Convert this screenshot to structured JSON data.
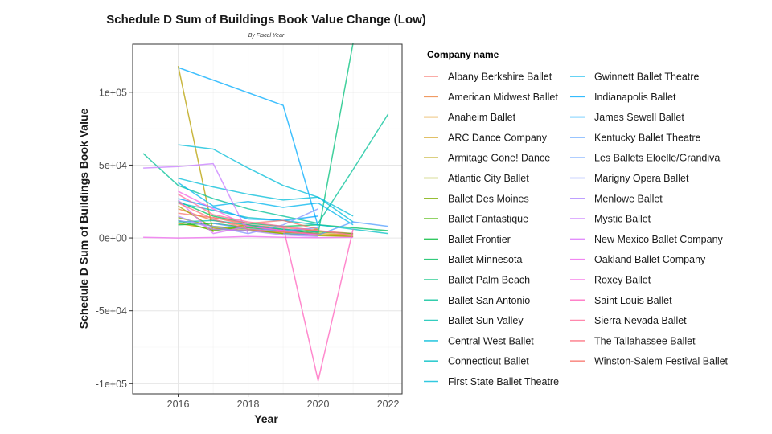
{
  "chart_data": {
    "type": "line",
    "title": "Schedule D Sum of Buildings Book Value Change (Low)",
    "subtitle": "By Fiscal Year",
    "xlabel": "Year",
    "ylabel": "Schedule D Sum of Buildings Book Value",
    "xlim": [
      2014.7,
      2022.4
    ],
    "ylim": [
      -107000,
      133000
    ],
    "x_ticks": [
      2016,
      2018,
      2020,
      2022
    ],
    "x_tick_labels": [
      "2016",
      "2018",
      "2020",
      "2022"
    ],
    "y_ticks": [
      -100000,
      -50000,
      0,
      50000,
      100000
    ],
    "y_tick_labels": [
      "-1e+05",
      "-5e+04",
      "0e+00",
      "5e+04",
      "1e+05"
    ],
    "grid": true,
    "legend_title": "Company name",
    "legend_position": "right",
    "series": [
      {
        "name": "Albany Berkshire Ballet",
        "color": "#F8766D",
        "x": [
          2016,
          2017,
          2018,
          2019,
          2020,
          2021
        ],
        "y": [
          17000,
          14000,
          9000,
          7000,
          5000,
          3000
        ]
      },
      {
        "name": "American Midwest Ballet",
        "color": "#EC823C",
        "x": [
          2016,
          2017,
          2018,
          2019,
          2020
        ],
        "y": [
          20000,
          12000,
          8000,
          5000,
          3000
        ]
      },
      {
        "name": "Anaheim Ballet",
        "color": "#DE8C00",
        "x": [
          2017,
          2018,
          2019,
          2020,
          2021
        ],
        "y": [
          6000,
          5000,
          4000,
          3000,
          2000
        ]
      },
      {
        "name": "ARC Dance Company",
        "color": "#CD9600",
        "x": [
          2016,
          2017,
          2018,
          2019,
          2020,
          2021
        ],
        "y": [
          10000,
          6000,
          9000,
          4000,
          2000,
          1000
        ]
      },
      {
        "name": "Armitage Gone! Dance",
        "color": "#B79F00",
        "x": [
          2016,
          2017
        ],
        "y": [
          118000,
          4000
        ]
      },
      {
        "name": "Atlantic City Ballet",
        "color": "#9DA700",
        "x": [
          2016,
          2017,
          2018,
          2019,
          2020,
          2021
        ],
        "y": [
          22000,
          7000,
          5000,
          3000,
          1500,
          1000
        ]
      },
      {
        "name": "Ballet Des Moines",
        "color": "#7CAE00",
        "x": [
          2016,
          2017,
          2018,
          2019,
          2020
        ],
        "y": [
          14000,
          8000,
          6000,
          3000,
          6000
        ]
      },
      {
        "name": "Ballet Fantastique",
        "color": "#49B500",
        "x": [
          2016,
          2017,
          2018,
          2019,
          2020,
          2021
        ],
        "y": [
          12000,
          5000,
          8000,
          6000,
          4000,
          3000
        ]
      },
      {
        "name": "Ballet Frontier",
        "color": "#00BA38",
        "x": [
          2016,
          2017,
          2018,
          2019,
          2020
        ],
        "y": [
          9000,
          10000,
          7000,
          5000,
          3000
        ]
      },
      {
        "name": "Ballet Minnesota",
        "color": "#00BD5C",
        "x": [
          2016,
          2017,
          2018,
          2019,
          2020,
          2021,
          2022
        ],
        "y": [
          25000,
          15000,
          10000,
          8000,
          9000,
          7000,
          5000
        ]
      },
      {
        "name": "Ballet Palm Beach",
        "color": "#00C07B",
        "x": [
          2019,
          2020,
          2021
        ],
        "y": [
          5000,
          3000,
          134000
        ]
      },
      {
        "name": "Ballet San Antonio",
        "color": "#00C097",
        "x": [
          2015,
          2016,
          2017,
          2018,
          2019,
          2020,
          2021,
          2022
        ],
        "y": [
          58000,
          36000,
          27000,
          20000,
          15000,
          10000,
          47000,
          85000
        ]
      },
      {
        "name": "Ballet Sun Valley",
        "color": "#00C0AF",
        "x": [
          2016,
          2017,
          2018,
          2019,
          2020
        ],
        "y": [
          11000,
          12000,
          9000,
          6000,
          4000
        ]
      },
      {
        "name": "Central West Ballet",
        "color": "#00BCD8",
        "x": [
          2016,
          2017,
          2018,
          2019,
          2020,
          2021
        ],
        "y": [
          41000,
          35000,
          30000,
          26000,
          28000,
          15000
        ]
      },
      {
        "name": "Connecticut Ballet",
        "color": "#00BFC4",
        "x": [
          2016,
          2017,
          2018,
          2019,
          2020,
          2021,
          2022
        ],
        "y": [
          24000,
          19000,
          14000,
          12000,
          9000,
          6000,
          3000
        ]
      },
      {
        "name": "First State Ballet Theatre",
        "color": "#00BCD8",
        "x": [
          2016,
          2017,
          2018,
          2019,
          2020,
          2021
        ],
        "y": [
          64000,
          61000,
          48000,
          36000,
          28000,
          11000
        ]
      },
      {
        "name": "Gwinnett Ballet Theatre",
        "color": "#00B5EE",
        "x": [
          2016,
          2017,
          2018,
          2019,
          2020,
          2021
        ],
        "y": [
          38000,
          22000,
          25000,
          21000,
          24000,
          9000
        ]
      },
      {
        "name": "Indianapolis Ballet",
        "color": "#00ABFD",
        "x": [
          2016,
          2019,
          2020
        ],
        "y": [
          117000,
          91000,
          8000
        ]
      },
      {
        "name": "James Sewell Ballet",
        "color": "#00A5FF",
        "x": [
          2016,
          2017,
          2018,
          2019,
          2020
        ],
        "y": [
          27000,
          21000,
          13000,
          12000,
          15000
        ]
      },
      {
        "name": "Kentucky Ballet Theatre",
        "color": "#529EFF",
        "x": [
          2019,
          2020,
          2021,
          2022
        ],
        "y": [
          3000,
          2000,
          11000,
          8000
        ]
      },
      {
        "name": "Les Ballets Eloelle/Grandiva",
        "color": "#619CFF",
        "x": [
          2017,
          2018,
          2019,
          2020
        ],
        "y": [
          10000,
          6000,
          5000,
          7000
        ]
      },
      {
        "name": "Marigny Opera Ballet",
        "color": "#8494FF",
        "x": [
          2016,
          2017,
          2018,
          2019,
          2020
        ],
        "y": [
          12000,
          8000,
          3000,
          9000,
          20000
        ]
      },
      {
        "name": "Menlowe Ballet",
        "color": "#AE87FF",
        "x": [
          2016,
          2017,
          2018,
          2019,
          2020
        ],
        "y": [
          15000,
          6000,
          5000,
          2000,
          1000
        ]
      },
      {
        "name": "Mystic Ballet",
        "color": "#C77CFF",
        "x": [
          2015,
          2016,
          2017,
          2018
        ],
        "y": [
          48000,
          49000,
          51000,
          3000
        ]
      },
      {
        "name": "New Mexico Ballet Company",
        "color": "#DB72FB",
        "x": [
          2016,
          2017,
          2018,
          2019,
          2020
        ],
        "y": [
          26000,
          3000,
          8000,
          5000,
          2000
        ]
      },
      {
        "name": "Oakland Ballet Company",
        "color": "#ED68ED",
        "x": [
          2015,
          2016,
          2017,
          2018,
          2019,
          2020,
          2021
        ],
        "y": [
          500,
          0,
          300,
          1000,
          400,
          200,
          500
        ]
      },
      {
        "name": "Roxey Ballet",
        "color": "#F564E3",
        "x": [
          2016,
          2017,
          2018,
          2019,
          2020
        ],
        "y": [
          32000,
          20000,
          8000,
          5000,
          2000
        ]
      },
      {
        "name": "Saint Louis Ballet",
        "color": "#FF62BC",
        "x": [
          2019,
          2020,
          2021
        ],
        "y": [
          8000,
          -98000,
          6000
        ]
      },
      {
        "name": "Sierra Nevada Ballet",
        "color": "#FF6A98",
        "x": [
          2016,
          2017,
          2018,
          2019,
          2020,
          2021
        ],
        "y": [
          30000,
          16000,
          11000,
          8000,
          5000,
          2000
        ]
      },
      {
        "name": "The Tallahassee Ballet",
        "color": "#FC717F",
        "x": [
          2016,
          2017,
          2018,
          2019,
          2020
        ],
        "y": [
          24000,
          13000,
          6000,
          4000,
          3000
        ]
      },
      {
        "name": "Winston-Salem Festival Ballet",
        "color": "#F8766D",
        "x": [
          2017,
          2018,
          2019,
          2020
        ],
        "y": [
          14000,
          10000,
          12000,
          6000
        ]
      }
    ]
  }
}
